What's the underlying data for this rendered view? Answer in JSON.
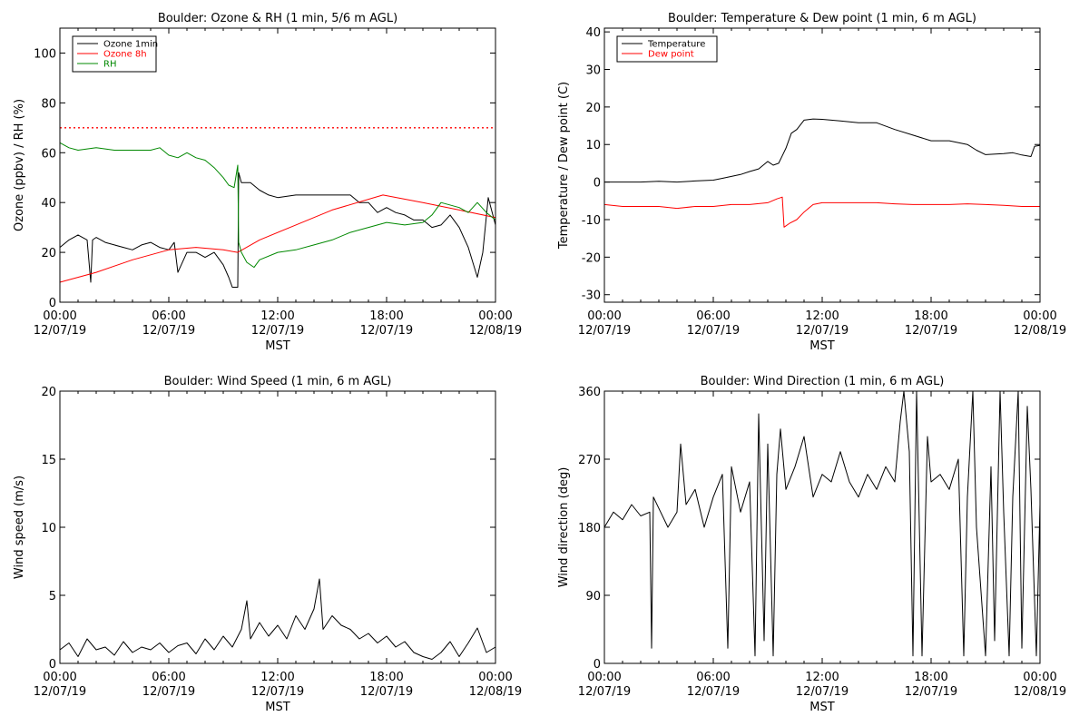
{
  "chart_data": [
    {
      "type": "line",
      "title": "Boulder: Ozone & RH (1 min, 5/6 m AGL)",
      "xlabel": "MST",
      "ylabel": "Ozone (ppbv) / RH (%)",
      "xlim": [
        0,
        24
      ],
      "ylim": [
        0,
        110
      ],
      "yticks": [
        0,
        20,
        40,
        60,
        80,
        100
      ],
      "xticks": [
        {
          "time": "00:00",
          "date": "12/07/19"
        },
        {
          "time": "06:00",
          "date": "12/07/19"
        },
        {
          "time": "12:00",
          "date": "12/07/19"
        },
        {
          "time": "18:00",
          "date": "12/07/19"
        },
        {
          "time": "00:00",
          "date": "12/08/19"
        }
      ],
      "legend_position": "top-left",
      "reference_line": {
        "y": 70,
        "color": "#ff0000",
        "style": "dotted"
      },
      "series": [
        {
          "name": "Ozone 1min",
          "color": "#000000",
          "x": [
            0,
            0.5,
            1.0,
            1.5,
            1.7,
            1.8,
            2.0,
            2.5,
            3.0,
            3.5,
            4.0,
            4.5,
            5.0,
            5.5,
            6.0,
            6.3,
            6.5,
            7.0,
            7.5,
            8.0,
            8.5,
            9.0,
            9.3,
            9.5,
            9.8,
            9.85,
            10.0,
            10.5,
            11.0,
            11.5,
            12.0,
            13.0,
            14.0,
            15.0,
            16.0,
            16.5,
            17.0,
            17.5,
            18.0,
            18.5,
            19.0,
            19.5,
            20.0,
            20.5,
            21.0,
            21.5,
            22.0,
            22.5,
            23.0,
            23.3,
            23.6,
            24.0
          ],
          "y": [
            22,
            25,
            27,
            25,
            8,
            25,
            26,
            24,
            23,
            22,
            21,
            23,
            24,
            22,
            21,
            24,
            12,
            20,
            20,
            18,
            20,
            15,
            10,
            6,
            6,
            52,
            48,
            48,
            45,
            43,
            42,
            43,
            43,
            43,
            43,
            40,
            40,
            36,
            38,
            36,
            35,
            33,
            33,
            30,
            31,
            35,
            30,
            22,
            10,
            20,
            42,
            31
          ]
        },
        {
          "name": "Ozone 8h",
          "color": "#ff0000",
          "x": [
            0,
            2,
            4,
            6,
            7.5,
            9.0,
            9.8,
            11,
            13,
            15,
            17.8,
            20,
            22,
            24
          ],
          "y": [
            8,
            12,
            17,
            21,
            22,
            21,
            20,
            25,
            31,
            37,
            43,
            40,
            37,
            34
          ]
        },
        {
          "name": "RH",
          "color": "#008800",
          "x": [
            0,
            0.5,
            1.0,
            2.0,
            3.0,
            4.0,
            5.0,
            5.5,
            6.0,
            6.5,
            7.0,
            7.5,
            8.0,
            8.5,
            9.0,
            9.3,
            9.6,
            9.8,
            9.85,
            10.0,
            10.3,
            10.7,
            11.0,
            12.0,
            13.0,
            14.0,
            15.0,
            16.0,
            17.0,
            18.0,
            19.0,
            20.0,
            20.5,
            21.0,
            22.0,
            22.5,
            23.0,
            23.5,
            24.0
          ],
          "y": [
            64,
            62,
            61,
            62,
            61,
            61,
            61,
            62,
            59,
            58,
            60,
            58,
            57,
            54,
            50,
            47,
            46,
            55,
            24,
            20,
            16,
            14,
            17,
            20,
            21,
            23,
            25,
            28,
            30,
            32,
            31,
            32,
            35,
            40,
            38,
            36,
            40,
            36,
            33
          ]
        }
      ]
    },
    {
      "type": "line",
      "title": "Boulder: Temperature & Dew point (1 min, 6 m AGL)",
      "xlabel": "MST",
      "ylabel": "Temperature / Dew point (C)",
      "xlim": [
        0,
        24
      ],
      "ylim": [
        -32,
        41
      ],
      "yticks": [
        -30,
        -20,
        -10,
        0,
        10,
        20,
        30,
        40
      ],
      "xticks": [
        {
          "time": "00:00",
          "date": "12/07/19"
        },
        {
          "time": "06:00",
          "date": "12/07/19"
        },
        {
          "time": "12:00",
          "date": "12/07/19"
        },
        {
          "time": "18:00",
          "date": "12/07/19"
        },
        {
          "time": "00:00",
          "date": "12/08/19"
        }
      ],
      "legend_position": "top-left",
      "series": [
        {
          "name": "Temperature",
          "color": "#000000",
          "x": [
            0,
            1,
            2,
            3,
            4,
            5,
            6,
            6.5,
            7,
            7.5,
            8,
            8.5,
            9,
            9.3,
            9.6,
            9.8,
            10.0,
            10.3,
            10.6,
            11.0,
            11.5,
            12.0,
            13.0,
            14.0,
            15.0,
            16.0,
            17.0,
            18.0,
            19.0,
            20.0,
            20.5,
            21.0,
            22.0,
            22.5,
            23.0,
            23.5,
            23.7,
            24.0
          ],
          "y": [
            0,
            0,
            0,
            0.2,
            0,
            0.3,
            0.5,
            1.0,
            1.5,
            2.0,
            2.8,
            3.5,
            5.5,
            4.5,
            5.0,
            7.0,
            9.0,
            13.0,
            14.0,
            16.5,
            16.8,
            16.7,
            16.3,
            15.8,
            15.8,
            14.0,
            12.5,
            11.0,
            11.0,
            10.0,
            8.5,
            7.3,
            7.6,
            7.8,
            7.2,
            6.8,
            9.5,
            9.8
          ]
        },
        {
          "name": "Dew point",
          "color": "#ff0000",
          "x": [
            0,
            1,
            2,
            3,
            4,
            5,
            6,
            7,
            8,
            9,
            9.5,
            9.8,
            9.9,
            10.2,
            10.6,
            11.0,
            11.5,
            12.0,
            13.0,
            14.0,
            15.0,
            16.0,
            17.0,
            18.0,
            19.0,
            20.0,
            21.0,
            22.0,
            23.0,
            24.0
          ],
          "y": [
            -6,
            -6.5,
            -6.5,
            -6.5,
            -7,
            -6.5,
            -6.5,
            -6,
            -6,
            -5.5,
            -4.5,
            -4,
            -12,
            -11,
            -10,
            -8,
            -6,
            -5.5,
            -5.5,
            -5.5,
            -5.5,
            -5.8,
            -6,
            -6,
            -6,
            -5.8,
            -6,
            -6.2,
            -6.5,
            -6.5
          ]
        }
      ]
    },
    {
      "type": "line",
      "title": "Boulder: Wind Speed (1 min, 6 m AGL)",
      "xlabel": "MST",
      "ylabel": "Wind speed (m/s)",
      "xlim": [
        0,
        24
      ],
      "ylim": [
        0,
        20
      ],
      "yticks": [
        0,
        5,
        10,
        15,
        20
      ],
      "xticks": [
        {
          "time": "00:00",
          "date": "12/07/19"
        },
        {
          "time": "06:00",
          "date": "12/07/19"
        },
        {
          "time": "12:00",
          "date": "12/07/19"
        },
        {
          "time": "18:00",
          "date": "12/07/19"
        },
        {
          "time": "00:00",
          "date": "12/08/19"
        }
      ],
      "series": [
        {
          "name": "",
          "color": "#000000",
          "x": [
            0,
            0.5,
            1.0,
            1.5,
            2.0,
            2.5,
            3.0,
            3.5,
            4.0,
            4.5,
            5.0,
            5.5,
            6.0,
            6.5,
            7.0,
            7.5,
            8.0,
            8.5,
            9.0,
            9.5,
            10.0,
            10.3,
            10.5,
            11.0,
            11.5,
            12.0,
            12.5,
            13.0,
            13.5,
            14.0,
            14.3,
            14.5,
            15.0,
            15.5,
            16.0,
            16.5,
            17.0,
            17.5,
            18.0,
            18.5,
            19.0,
            19.5,
            20.0,
            20.5,
            21.0,
            21.5,
            22.0,
            22.5,
            23.0,
            23.5,
            24.0
          ],
          "y": [
            1.0,
            1.5,
            0.5,
            1.8,
            1.0,
            1.2,
            0.6,
            1.6,
            0.8,
            1.2,
            1.0,
            1.5,
            0.8,
            1.3,
            1.5,
            0.7,
            1.8,
            1.0,
            2.0,
            1.2,
            2.5,
            4.6,
            1.8,
            3.0,
            2.0,
            2.8,
            1.8,
            3.5,
            2.5,
            4.0,
            6.2,
            2.5,
            3.5,
            2.8,
            2.5,
            1.8,
            2.2,
            1.5,
            2.0,
            1.2,
            1.6,
            0.8,
            0.5,
            0.3,
            0.8,
            1.6,
            0.5,
            1.5,
            2.6,
            0.8,
            1.2
          ]
        }
      ]
    },
    {
      "type": "line",
      "title": "Boulder: Wind Direction (1 min, 6 m AGL)",
      "xlabel": "MST",
      "ylabel": "Wind direction (deg)",
      "xlim": [
        0,
        24
      ],
      "ylim": [
        0,
        360
      ],
      "yticks": [
        0,
        90,
        180,
        270,
        360
      ],
      "xticks": [
        {
          "time": "00:00",
          "date": "12/07/19"
        },
        {
          "time": "06:00",
          "date": "12/07/19"
        },
        {
          "time": "12:00",
          "date": "12/07/19"
        },
        {
          "time": "18:00",
          "date": "12/07/19"
        },
        {
          "time": "00:00",
          "date": "12/08/19"
        }
      ],
      "series": [
        {
          "name": "",
          "color": "#000000",
          "x": [
            0,
            0.5,
            1.0,
            1.5,
            2.0,
            2.5,
            2.6,
            2.7,
            3.0,
            3.5,
            4.0,
            4.2,
            4.5,
            5.0,
            5.5,
            6.0,
            6.5,
            6.8,
            7.0,
            7.5,
            8.0,
            8.3,
            8.5,
            8.8,
            9.0,
            9.3,
            9.5,
            9.7,
            10.0,
            10.5,
            11.0,
            11.5,
            12.0,
            12.5,
            13.0,
            13.5,
            14.0,
            14.5,
            15.0,
            15.5,
            16.0,
            16.3,
            16.5,
            16.8,
            17.0,
            17.2,
            17.5,
            17.8,
            18.0,
            18.5,
            19.0,
            19.5,
            19.8,
            20.0,
            20.3,
            20.5,
            21.0,
            21.3,
            21.5,
            21.8,
            22.0,
            22.3,
            22.5,
            22.8,
            23.0,
            23.3,
            23.5,
            23.8,
            24.0
          ],
          "y": [
            180,
            200,
            190,
            210,
            195,
            200,
            20,
            220,
            205,
            180,
            200,
            290,
            210,
            230,
            180,
            220,
            250,
            20,
            260,
            200,
            240,
            10,
            330,
            30,
            290,
            10,
            250,
            310,
            230,
            260,
            300,
            220,
            250,
            240,
            280,
            240,
            220,
            250,
            230,
            260,
            240,
            320,
            360,
            280,
            10,
            360,
            10,
            300,
            240,
            250,
            230,
            270,
            10,
            220,
            360,
            180,
            10,
            260,
            30,
            360,
            200,
            10,
            220,
            360,
            20,
            340,
            230,
            10,
            210
          ]
        }
      ]
    }
  ]
}
